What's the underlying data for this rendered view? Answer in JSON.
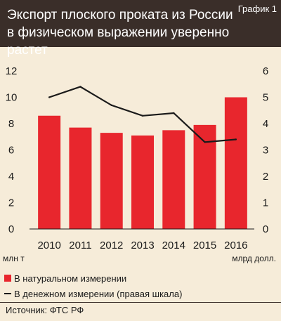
{
  "header": {
    "title": "Экспорт плоского проката из России в физическом выражении уверенно растет",
    "badge": "График 1"
  },
  "colors": {
    "header_bg": "#3a2e29",
    "background": "#f6ecd9",
    "bar": "#e8262d",
    "line": "#1a1a1a"
  },
  "chart_data": {
    "type": "bar",
    "categories": [
      "2010",
      "2011",
      "2012",
      "2013",
      "2014",
      "2015",
      "2016"
    ],
    "series": [
      {
        "name": "В натуральном измерении",
        "type": "bar",
        "axis": "left",
        "values": [
          8.6,
          7.7,
          7.3,
          7.1,
          7.5,
          7.9,
          10.0
        ]
      },
      {
        "name": "В денежном измерении (правая шкала)",
        "type": "line",
        "axis": "right",
        "values": [
          5.0,
          5.4,
          4.7,
          4.3,
          4.4,
          3.3,
          3.4
        ]
      }
    ],
    "left_axis": {
      "label": "млн т",
      "range": [
        0,
        12
      ],
      "ticks": [
        "0",
        "2",
        "4",
        "6",
        "8",
        "10",
        "12"
      ]
    },
    "right_axis": {
      "label": "млрд долл.",
      "range": [
        0,
        6
      ],
      "ticks": [
        "0",
        "1",
        "2",
        "3",
        "4",
        "5",
        "6"
      ]
    },
    "grid": false,
    "legend": "bottom-left"
  },
  "legend": [
    {
      "label": "В натуральном измерении",
      "kind": "bar"
    },
    {
      "label": "В денежном измерении (правая шкала)",
      "kind": "line"
    }
  ],
  "source": "Источник: ФТС РФ"
}
